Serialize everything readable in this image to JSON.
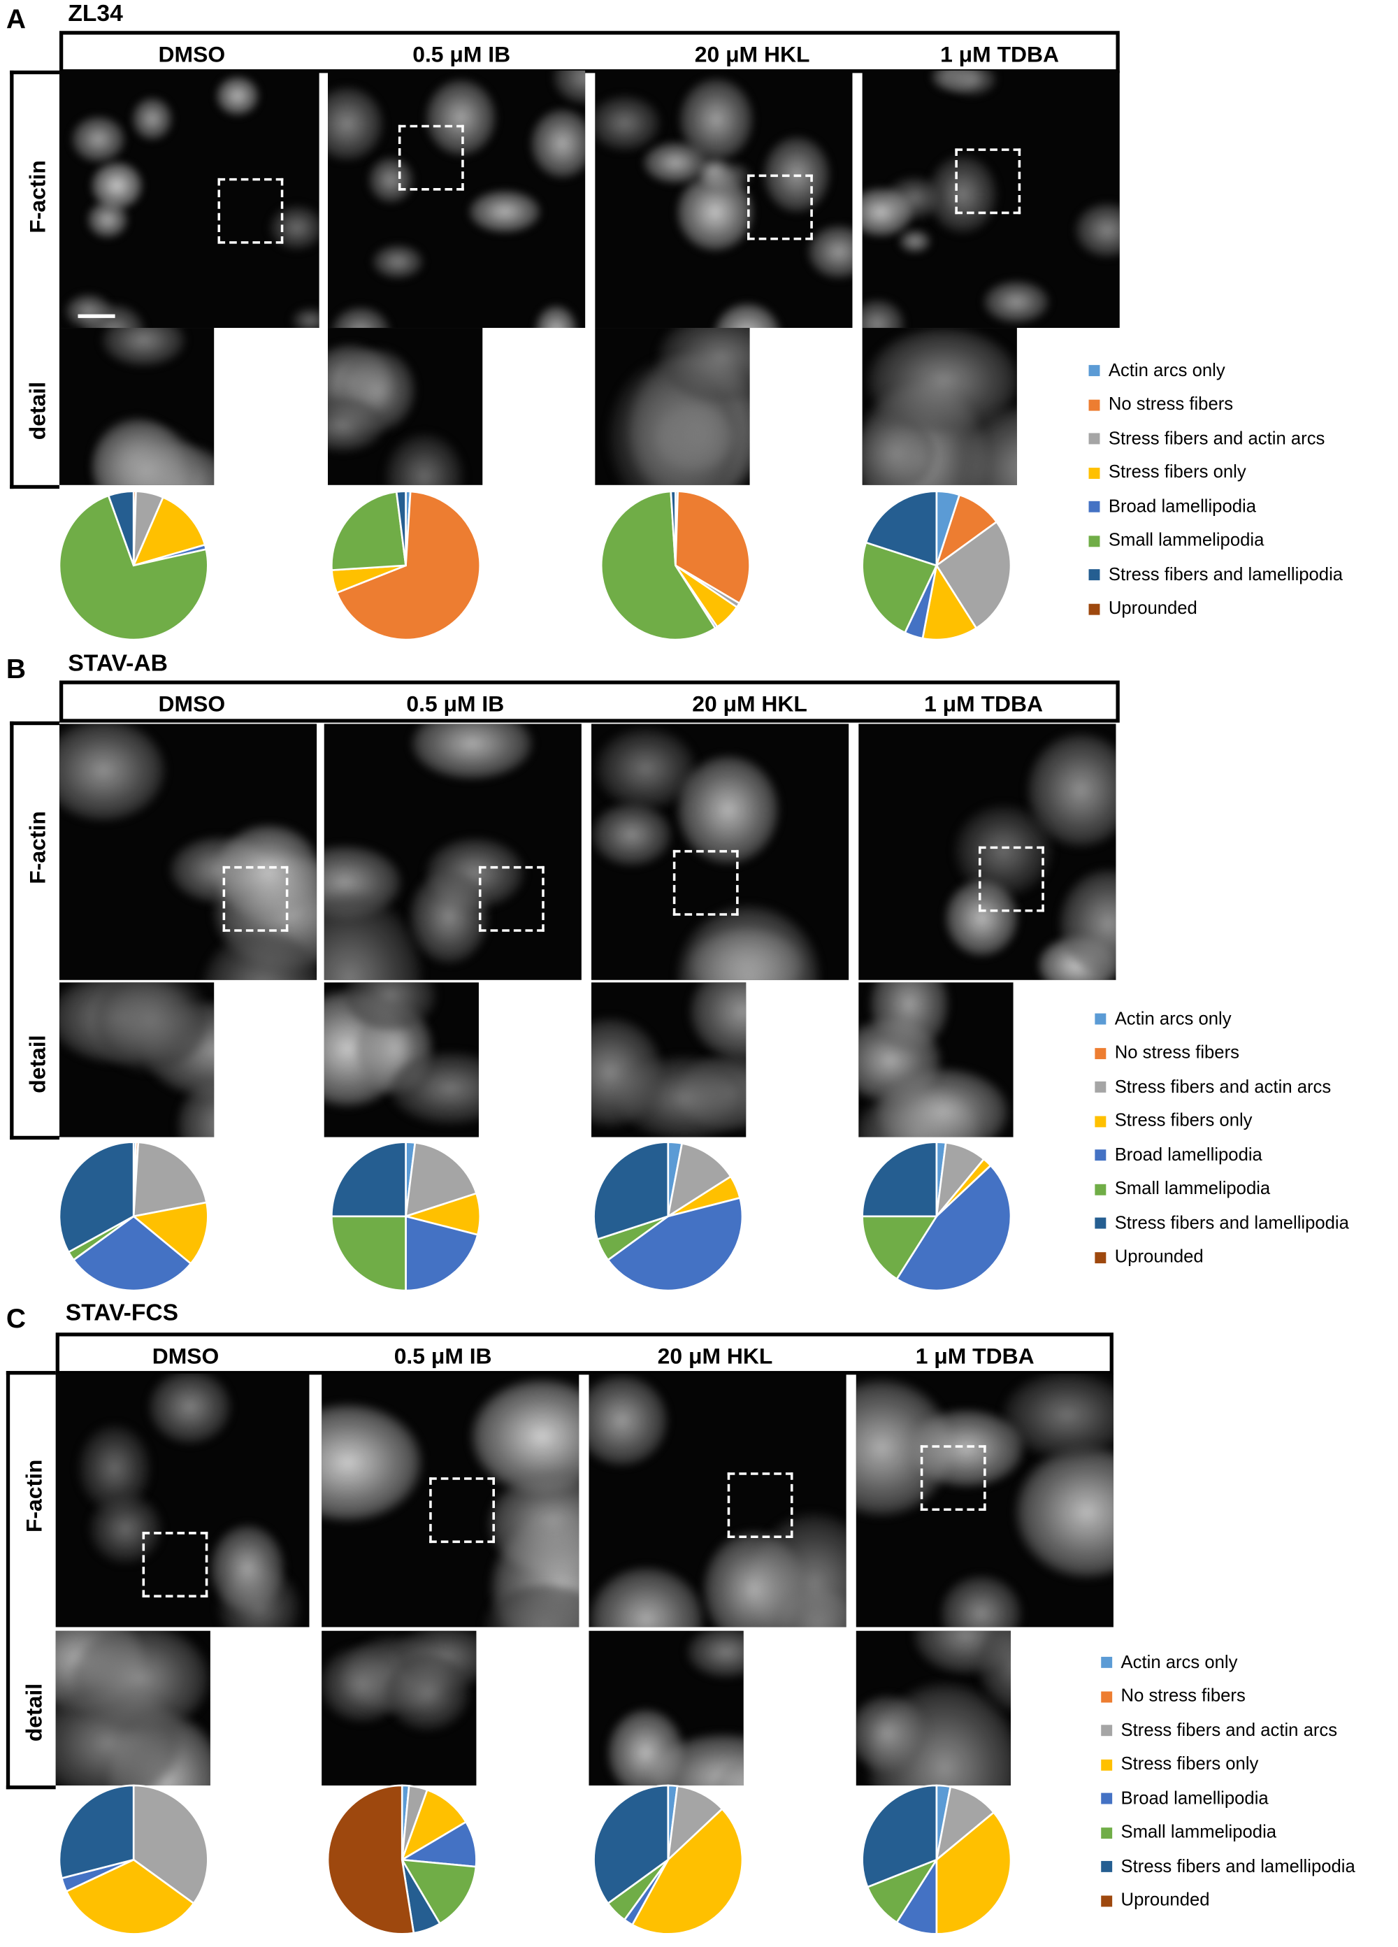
{
  "categories": [
    "Actin arcs only",
    "No stress fibers",
    "Stress fibers and actin arcs",
    "Stress fibers only",
    "Broad lamellipodia",
    "Small lammelipodia",
    "Stress fibers and lamellipodia",
    "Uprounded"
  ],
  "colors": [
    "#5B9BD5",
    "#ED7D31",
    "#A5A5A5",
    "#FFC000",
    "#4472C4",
    "#70AD47",
    "#255E91",
    "#9E480E"
  ],
  "row_labels": [
    "F-actin",
    "detail"
  ],
  "treatments": [
    "DMSO",
    "0.5 μM IB",
    "20 μM HKL",
    "1 μM TDBA"
  ],
  "panels": [
    {
      "letter": "A",
      "cell_line": "ZL34"
    },
    {
      "letter": "B",
      "cell_line": "STAV-AB"
    },
    {
      "letter": "C",
      "cell_line": "STAV-FCS"
    }
  ],
  "chart_data": [
    {
      "type": "pie",
      "panel": "A",
      "treatment": "DMSO",
      "values": [
        0,
        0.5,
        6,
        14,
        1,
        73,
        5.5,
        0
      ]
    },
    {
      "type": "pie",
      "panel": "A",
      "treatment": "0.5 μM IB",
      "values": [
        1,
        68,
        0,
        5,
        0,
        24,
        2,
        0
      ]
    },
    {
      "type": "pie",
      "panel": "A",
      "treatment": "20 μM HKL",
      "values": [
        0.5,
        33,
        1,
        6,
        0.5,
        58,
        1,
        0
      ]
    },
    {
      "type": "pie",
      "panel": "A",
      "treatment": "1 μM TDBA",
      "values": [
        5,
        10,
        26,
        12,
        4,
        23,
        20,
        0
      ]
    },
    {
      "type": "pie",
      "panel": "B",
      "treatment": "DMSO",
      "values": [
        0.5,
        0.5,
        21,
        14,
        29,
        2,
        33,
        0
      ]
    },
    {
      "type": "pie",
      "panel": "B",
      "treatment": "0.5 μM IB",
      "values": [
        2,
        0,
        18,
        9,
        21,
        25,
        25,
        0
      ]
    },
    {
      "type": "pie",
      "panel": "B",
      "treatment": "20 μM HKL",
      "values": [
        3,
        0,
        13,
        5,
        44,
        5,
        30,
        0
      ]
    },
    {
      "type": "pie",
      "panel": "B",
      "treatment": "1 μM TDBA",
      "values": [
        2,
        0,
        9,
        2,
        46,
        16,
        25,
        0
      ]
    },
    {
      "type": "pie",
      "panel": "C",
      "treatment": "DMSO",
      "values": [
        0,
        0,
        35,
        33,
        3,
        0,
        29,
        0
      ]
    },
    {
      "type": "pie",
      "panel": "C",
      "treatment": "0.5 μM IB",
      "values": [
        1.5,
        0,
        4,
        11,
        10,
        15,
        6,
        52.5
      ]
    },
    {
      "type": "pie",
      "panel": "C",
      "treatment": "20 μM HKL",
      "values": [
        2,
        0,
        11,
        45,
        2,
        5,
        35,
        0
      ]
    },
    {
      "type": "pie",
      "panel": "C",
      "treatment": "1 μM TDBA",
      "values": [
        3,
        0,
        11,
        36,
        9,
        10,
        31,
        0
      ]
    }
  ]
}
